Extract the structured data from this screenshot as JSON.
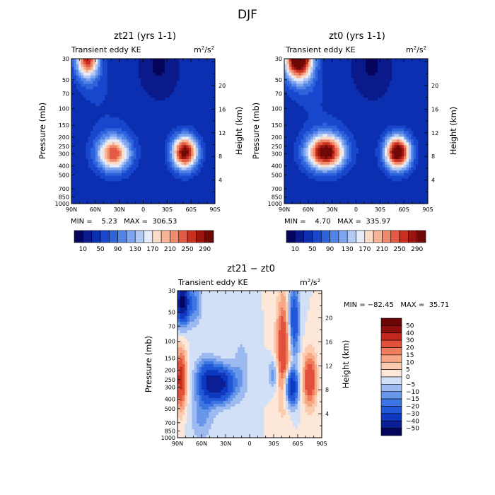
{
  "figure_title": "DJF",
  "chart_data": [
    {
      "type": "heatmap",
      "title": "zt21 (yrs 1-1)",
      "subtitle_left": "Transient eddy KE",
      "units": "m²/s²",
      "units_base": "m",
      "units_mid": "/s",
      "units_sup": "2",
      "xlabel": "",
      "ylabel": "Pressure (mb)",
      "ylabel_right": "Height (km)",
      "x_ticks": [
        "90N",
        "60N",
        "30N",
        "0",
        "30S",
        "60S",
        "90S"
      ],
      "y_ticks": [
        "30",
        "50",
        "70",
        "100",
        "150",
        "200",
        "250",
        "300",
        "400",
        "500",
        "700",
        "850",
        "1000"
      ],
      "y_ticks_right": [
        "20",
        "16",
        "12",
        "8",
        "4"
      ],
      "xlim": [
        90,
        -90
      ],
      "ylim": [
        1000,
        30
      ],
      "stats_text": "MIN =    5.23   MAX =  306.53",
      "min": 5.23,
      "max": 306.53,
      "colorbar_levels": [
        "10",
        "50",
        "90",
        "130",
        "170",
        "210",
        "250",
        "290"
      ],
      "color_levels": [
        10,
        30,
        50,
        70,
        90,
        110,
        130,
        150,
        170,
        190,
        210,
        230,
        250,
        270,
        290
      ],
      "background": 35,
      "features": [
        {
          "lat": -52,
          "p": 290,
          "amp": 270,
          "sx": 11,
          "sy": 0.28
        },
        {
          "lat": 37,
          "p": 300,
          "amp": 195,
          "sx": 14,
          "sy": 0.28
        },
        {
          "lat": 70,
          "p": 30,
          "amp": 230,
          "sx": 10,
          "sy": 0.32
        },
        {
          "lat": -20,
          "p": 35,
          "amp": -30,
          "sx": 14,
          "sy": 0.45
        },
        {
          "lat": 40,
          "p": 220,
          "amp": 25,
          "sx": 20,
          "sy": 0.5
        },
        {
          "lat": 60,
          "p": 60,
          "amp": 20,
          "sx": 16,
          "sy": 0.4
        }
      ]
    },
    {
      "type": "heatmap",
      "title": "zt0 (yrs 1-1)",
      "subtitle_left": "Transient eddy KE",
      "units": "m²/s²",
      "units_base": "m",
      "units_mid": "/s",
      "units_sup": "2",
      "xlabel": "",
      "ylabel": "Pressure (mb)",
      "ylabel_right": "Height (km)",
      "x_ticks": [
        "90N",
        "60N",
        "30N",
        "0",
        "30S",
        "60S",
        "90S"
      ],
      "y_ticks": [
        "30",
        "50",
        "70",
        "100",
        "150",
        "200",
        "250",
        "300",
        "400",
        "500",
        "700",
        "850",
        "1000"
      ],
      "y_ticks_right": [
        "20",
        "16",
        "12",
        "8",
        "4"
      ],
      "xlim": [
        90,
        -90
      ],
      "ylim": [
        1000,
        30
      ],
      "stats_text": "MIN =    4.70   MAX =  335.97",
      "min": 4.7,
      "max": 335.97,
      "colorbar_levels": [
        "10",
        "50",
        "90",
        "130",
        "170",
        "210",
        "250",
        "290"
      ],
      "color_levels": [
        10,
        30,
        50,
        70,
        90,
        110,
        130,
        150,
        170,
        190,
        210,
        230,
        250,
        270,
        290
      ],
      "background": 35,
      "features": [
        {
          "lat": -52,
          "p": 290,
          "amp": 295,
          "sx": 11,
          "sy": 0.28
        },
        {
          "lat": 38,
          "p": 290,
          "amp": 260,
          "sx": 16,
          "sy": 0.28
        },
        {
          "lat": 72,
          "p": 30,
          "amp": 320,
          "sx": 12,
          "sy": 0.35
        },
        {
          "lat": -20,
          "p": 35,
          "amp": -30,
          "sx": 14,
          "sy": 0.45
        },
        {
          "lat": 40,
          "p": 220,
          "amp": 30,
          "sx": 20,
          "sy": 0.5
        },
        {
          "lat": 60,
          "p": 60,
          "amp": 25,
          "sx": 16,
          "sy": 0.4
        }
      ]
    },
    {
      "type": "heatmap",
      "title": "zt21 − zt0",
      "subtitle_left": "Transient eddy KE",
      "units": "m²/s²",
      "units_base": "m",
      "units_mid": "/s",
      "units_sup": "2",
      "xlabel": "",
      "ylabel": "Pressure (mb)",
      "ylabel_right": "Height (km)",
      "x_ticks": [
        "90N",
        "60N",
        "30N",
        "0",
        "30S",
        "60S",
        "90S"
      ],
      "y_ticks": [
        "30",
        "50",
        "70",
        "100",
        "150",
        "200",
        "250",
        "300",
        "400",
        "500",
        "700",
        "850",
        "1000"
      ],
      "y_ticks_right": [
        "20",
        "16",
        "12",
        "8",
        "4"
      ],
      "xlim": [
        90,
        -90
      ],
      "ylim": [
        1000,
        30
      ],
      "stats_text": "MIN = −82.45   MAX =  35.71",
      "min": -82.45,
      "max": 35.71,
      "colorbar_levels": [
        "50",
        "40",
        "30",
        "20",
        "15",
        "10",
        "5",
        "0",
        "−5",
        "−10",
        "−15",
        "−20",
        "−30",
        "−40",
        "−50"
      ],
      "color_levels": [
        -50,
        -40,
        -30,
        -20,
        -15,
        -10,
        -5,
        0,
        5,
        10,
        15,
        20,
        30,
        40,
        50
      ],
      "background": 0,
      "features": [
        {
          "lat": 84,
          "p": 40,
          "amp": -55,
          "sx": 6,
          "sy": 0.35
        },
        {
          "lat": 37,
          "p": 280,
          "amp": -45,
          "sx": 12,
          "sy": 0.3
        },
        {
          "lat": 55,
          "p": 250,
          "amp": -25,
          "sx": 9,
          "sy": 0.35
        },
        {
          "lat": 86,
          "p": 250,
          "amp": 35,
          "sx": 5,
          "sy": 0.5
        },
        {
          "lat": -42,
          "p": 120,
          "amp": 30,
          "sx": 6,
          "sy": 0.9
        },
        {
          "lat": -55,
          "p": 60,
          "amp": -30,
          "sx": 5,
          "sy": 0.6
        },
        {
          "lat": -52,
          "p": 300,
          "amp": -40,
          "sx": 6,
          "sy": 0.3
        },
        {
          "lat": -75,
          "p": 250,
          "amp": 30,
          "sx": 6,
          "sy": 0.45
        },
        {
          "lat": -30,
          "p": 220,
          "amp": -15,
          "sx": 4,
          "sy": 0.25
        },
        {
          "lat": 10,
          "p": 200,
          "amp": -8,
          "sx": 8,
          "sy": 0.6
        },
        {
          "lat": 68,
          "p": 40,
          "amp": -15,
          "sx": 6,
          "sy": 0.4
        },
        {
          "lat": 60,
          "p": 600,
          "amp": -12,
          "sx": 10,
          "sy": 0.4
        }
      ]
    }
  ],
  "palettes": {
    "kinetic": [
      "#05055e",
      "#0a1a8a",
      "#0b2fb0",
      "#1846cc",
      "#2f63dc",
      "#5184e6",
      "#7ea5ee",
      "#b2c9f4",
      "#e6ecfa",
      "#fbdcc8",
      "#f7b497",
      "#f08a6c",
      "#e45a44",
      "#c7301f",
      "#9a1510",
      "#6e0906"
    ],
    "difference": [
      "#05055e",
      "#0a1f95",
      "#0f38c0",
      "#2158d8",
      "#3d76e3",
      "#6897ea",
      "#9cbaf0",
      "#d2e0f7",
      "#fde7d8",
      "#fbcbb0",
      "#f7a686",
      "#ef7d5d",
      "#e0503a",
      "#c2281c",
      "#8f0f0c",
      "#6a0606"
    ]
  }
}
